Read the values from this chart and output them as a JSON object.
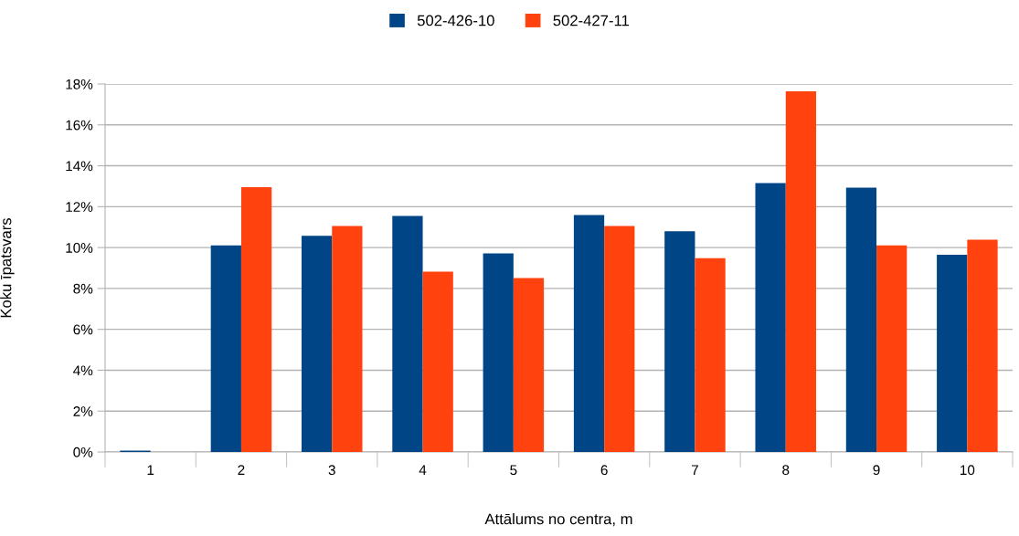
{
  "chart_data": {
    "type": "bar",
    "xlabel": "Attālums no centra, m",
    "ylabel": "Koku īpatsvars",
    "categories": [
      "1",
      "2",
      "3",
      "4",
      "5",
      "6",
      "7",
      "8",
      "9",
      "10"
    ],
    "series": [
      {
        "name": "502-426-10",
        "color": "#004586",
        "values": [
          0.07,
          10.1,
          10.58,
          11.55,
          9.71,
          11.59,
          10.8,
          13.15,
          12.93,
          9.65
        ]
      },
      {
        "name": "502-427-11",
        "color": "#ff420e",
        "values": [
          0,
          12.95,
          11.06,
          8.82,
          8.51,
          11.05,
          9.48,
          17.64,
          10.1,
          10.39
        ]
      }
    ],
    "ylim": [
      0,
      18
    ],
    "yticks": [
      {
        "value": 0,
        "label": "0%"
      },
      {
        "value": 2,
        "label": "2%"
      },
      {
        "value": 4,
        "label": "4%"
      },
      {
        "value": 6,
        "label": "6%"
      },
      {
        "value": 8,
        "label": "8%"
      },
      {
        "value": 10,
        "label": "10%"
      },
      {
        "value": 12,
        "label": "12%"
      },
      {
        "value": 14,
        "label": "14%"
      },
      {
        "value": 16,
        "label": "16%"
      },
      {
        "value": 18,
        "label": "18%"
      }
    ],
    "grid": "y",
    "legend": "top"
  }
}
